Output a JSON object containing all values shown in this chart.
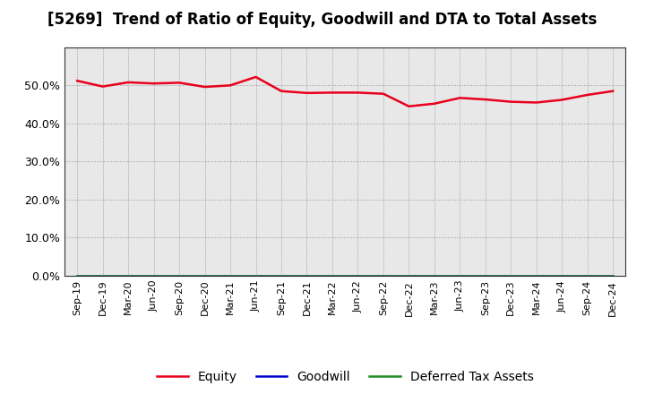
{
  "title": "[5269]  Trend of Ratio of Equity, Goodwill and DTA to Total Assets",
  "x_labels": [
    "Sep-19",
    "Dec-19",
    "Mar-20",
    "Jun-20",
    "Sep-20",
    "Dec-20",
    "Mar-21",
    "Jun-21",
    "Sep-21",
    "Dec-21",
    "Mar-22",
    "Jun-22",
    "Sep-22",
    "Dec-22",
    "Mar-23",
    "Jun-23",
    "Sep-23",
    "Dec-23",
    "Mar-24",
    "Jun-24",
    "Sep-24",
    "Dec-24"
  ],
  "equity": [
    51.2,
    49.7,
    50.8,
    50.5,
    50.7,
    49.6,
    50.0,
    52.2,
    48.5,
    48.0,
    48.1,
    48.1,
    47.8,
    44.5,
    45.2,
    46.7,
    46.3,
    45.7,
    45.5,
    46.2,
    47.5,
    48.5
  ],
  "goodwill": [
    0.0,
    0.0,
    0.0,
    0.0,
    0.0,
    0.0,
    0.0,
    0.0,
    0.0,
    0.0,
    0.0,
    0.0,
    0.0,
    0.0,
    0.0,
    0.0,
    0.0,
    0.0,
    0.0,
    0.0,
    0.0,
    0.0
  ],
  "dta": [
    0.0,
    0.0,
    0.0,
    0.0,
    0.0,
    0.0,
    0.0,
    0.0,
    0.0,
    0.0,
    0.0,
    0.0,
    0.0,
    0.0,
    0.0,
    0.0,
    0.0,
    0.0,
    0.0,
    0.0,
    0.0,
    0.0
  ],
  "equity_color": "#e8001c",
  "goodwill_color": "#0000cd",
  "dta_color": "#228B22",
  "ylim": [
    0,
    60
  ],
  "yticks": [
    0.0,
    10.0,
    20.0,
    30.0,
    40.0,
    50.0
  ],
  "background_color": "#ffffff",
  "plot_bg_color": "#e8e8e8",
  "grid_color": "#999999",
  "title_fontsize": 12
}
